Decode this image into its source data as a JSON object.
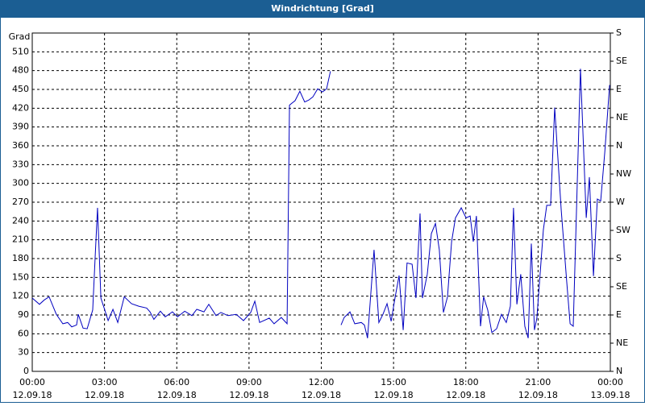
{
  "chart_data": {
    "type": "line",
    "title": "Windrichtung [Grad]",
    "y_label": "Grad",
    "x": [
      0.0,
      0.3,
      0.5,
      0.7,
      1.0,
      1.27,
      1.47,
      1.64,
      1.84,
      1.91,
      2.11,
      2.28,
      2.51,
      2.61,
      2.71,
      2.85,
      3.01,
      3.15,
      3.35,
      3.55,
      3.82,
      4.12,
      4.42,
      4.75,
      4.89,
      5.05,
      5.32,
      5.52,
      5.82,
      6.03,
      6.33,
      6.63,
      6.83,
      7.13,
      7.33,
      7.63,
      7.83,
      8.13,
      8.47,
      8.77,
      9.07,
      9.24,
      9.44,
      9.84,
      10.04,
      10.34,
      10.58,
      10.68,
      10.91,
      11.11,
      11.31,
      11.48,
      11.65,
      11.85,
      12.05,
      12.22,
      12.38,
      12.6,
      12.82,
      12.95,
      13.19,
      13.39,
      13.66,
      13.79,
      13.92,
      14.19,
      14.39,
      14.56,
      14.73,
      14.9,
      15.06,
      15.23,
      15.4,
      15.56,
      15.77,
      15.93,
      16.1,
      16.2,
      16.4,
      16.57,
      16.74,
      16.9,
      17.07,
      17.24,
      17.41,
      17.57,
      17.81,
      18.01,
      18.18,
      18.31,
      18.44,
      18.61,
      18.74,
      18.91,
      19.08,
      19.28,
      19.48,
      19.68,
      19.85,
      19.98,
      20.12,
      20.28,
      20.45,
      20.59,
      20.72,
      20.85,
      20.95,
      21.22,
      21.36,
      21.52,
      21.69,
      21.96,
      22.19,
      22.33,
      22.46,
      22.76,
      23.0,
      23.13,
      23.3,
      23.46,
      23.6,
      23.77,
      23.97
    ],
    "series": [
      {
        "name": "Windrichtung",
        "color": "#0000c0",
        "values": [
          117,
          107,
          114,
          119,
          91,
          76,
          78,
          71,
          74,
          91,
          69,
          68,
          98,
          181,
          261,
          117,
          98,
          81,
          99,
          78,
          119,
          108,
          104,
          101,
          95,
          83,
          96,
          87,
          95,
          87,
          96,
          89,
          99,
          95,
          107,
          89,
          94,
          89,
          91,
          81,
          94,
          112,
          78,
          85,
          76,
          86,
          76,
          425,
          432,
          447,
          430,
          433,
          438,
          451,
          446,
          451,
          479,
          null,
          74,
          86,
          95,
          76,
          78,
          74,
          53,
          194,
          78,
          91,
          108,
          80,
          117,
          153,
          66,
          173,
          171,
          117,
          252,
          117,
          155,
          220,
          236,
          194,
          94,
          119,
          207,
          245,
          261,
          245,
          248,
          207,
          248,
          72,
          119,
          98,
          62,
          68,
          91,
          78,
          104,
          261,
          107,
          155,
          72,
          53,
          204,
          66,
          85,
          226,
          265,
          265,
          421,
          258,
          143,
          76,
          72,
          483,
          245,
          310,
          152,
          275,
          272,
          350,
          457
        ]
      }
    ],
    "xlim": [
      0,
      24
    ],
    "xticks": [
      {
        "value": 0,
        "label": "00:00"
      },
      {
        "value": 3,
        "label": "03:00"
      },
      {
        "value": 6,
        "label": "06:00"
      },
      {
        "value": 9,
        "label": "09:00"
      },
      {
        "value": 12,
        "label": "12:00"
      },
      {
        "value": 15,
        "label": "15:00"
      },
      {
        "value": 18,
        "label": "18:00"
      },
      {
        "value": 21,
        "label": "21:00"
      },
      {
        "value": 24,
        "label": "00:00"
      }
    ],
    "xtick_dates": [
      "12.09.18",
      "12.09.18",
      "12.09.18",
      "12.09.18",
      "12.09.18",
      "12.09.18",
      "12.09.18",
      "12.09.18",
      "13.09.18"
    ],
    "ylim": [
      0,
      540
    ],
    "yticks": [
      0,
      30,
      60,
      90,
      120,
      150,
      180,
      210,
      240,
      270,
      300,
      330,
      360,
      390,
      420,
      450,
      480,
      510
    ],
    "y2lim": [
      0,
      540
    ],
    "y2ticks": [
      {
        "value": 0,
        "label": "N"
      },
      {
        "value": 45,
        "label": "NE"
      },
      {
        "value": 90,
        "label": "E"
      },
      {
        "value": 135,
        "label": "SE"
      },
      {
        "value": 180,
        "label": "S"
      },
      {
        "value": 225,
        "label": "SW"
      },
      {
        "value": 270,
        "label": "W"
      },
      {
        "value": 315,
        "label": "NW"
      },
      {
        "value": 360,
        "label": "N"
      },
      {
        "value": 405,
        "label": "NE"
      },
      {
        "value": 450,
        "label": "E"
      },
      {
        "value": 495,
        "label": "SE"
      },
      {
        "value": 540,
        "label": "S"
      }
    ],
    "grid": true
  }
}
